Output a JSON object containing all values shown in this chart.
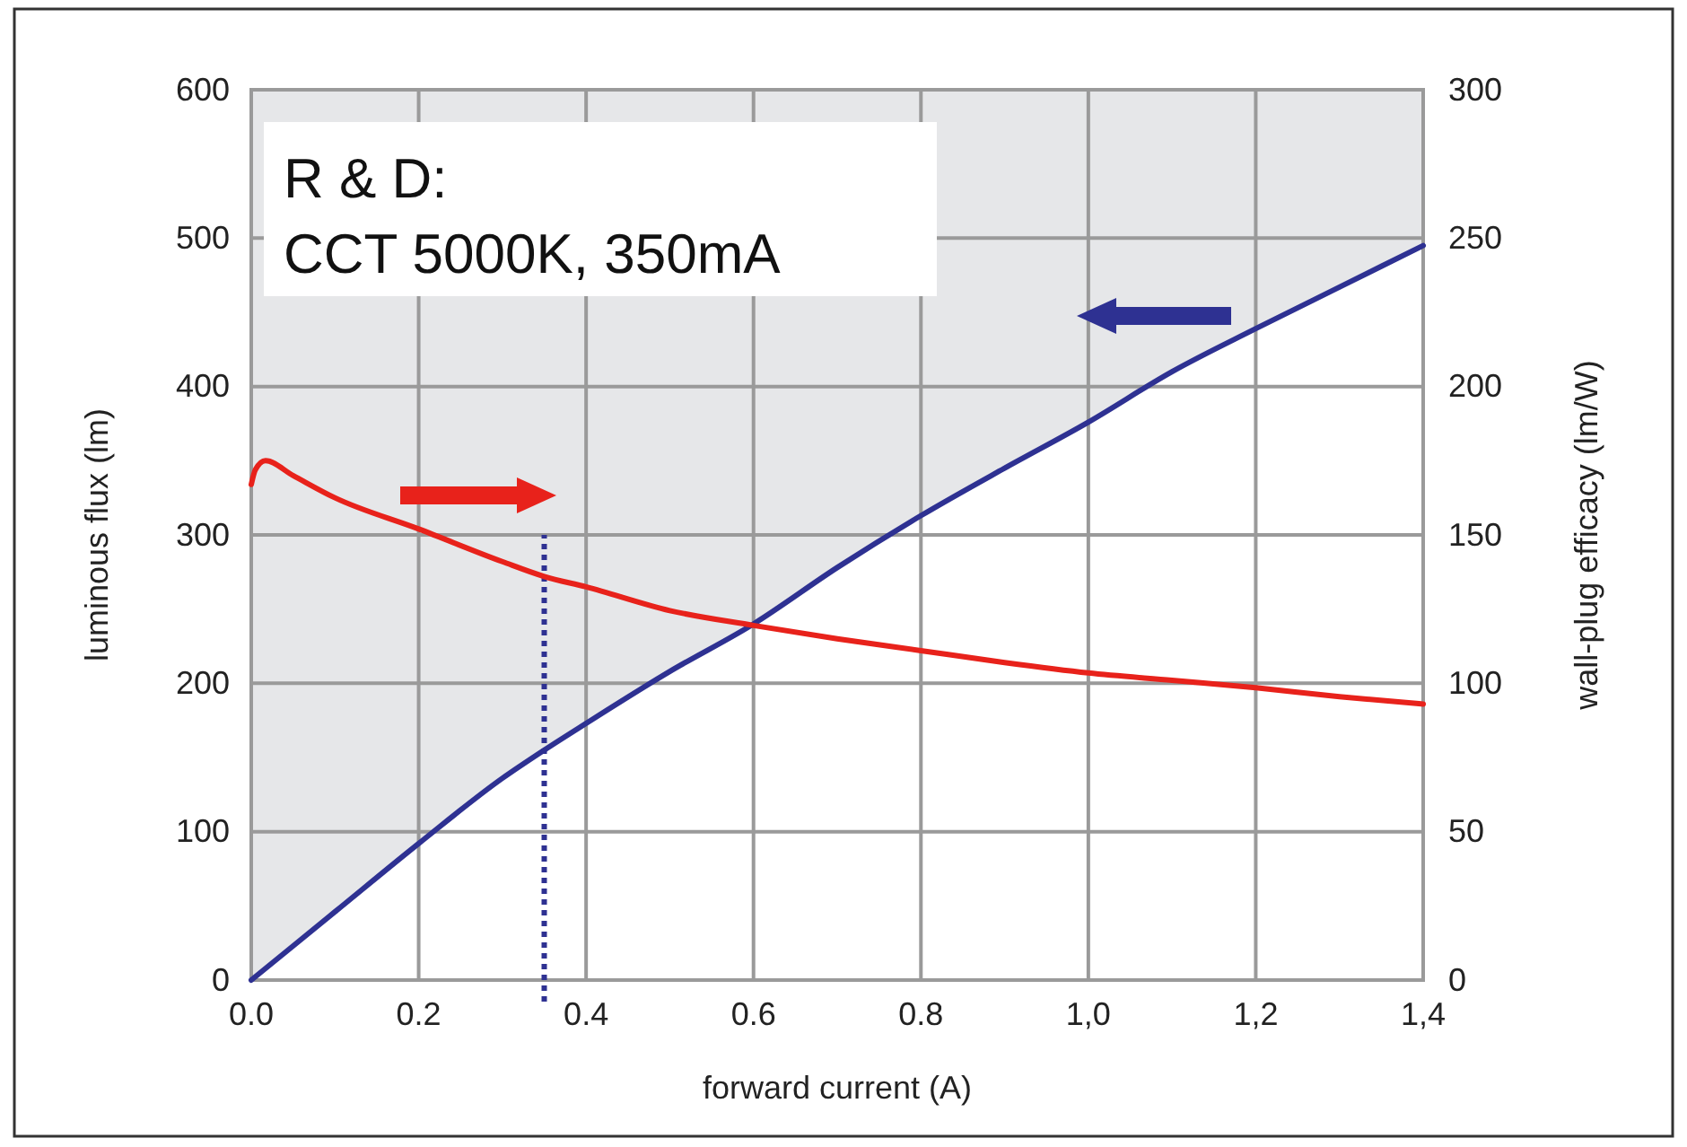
{
  "chart_data": {
    "type": "line",
    "xlabel": "forward current (A)",
    "ylabel": "luminous flux (lm)",
    "y2label": "wall-plug efficacy (lm/W)",
    "annotations": [
      "R & D:",
      "CCT 5000K, 350mA"
    ],
    "xlim": [
      0,
      1.4
    ],
    "xticks": [
      {
        "value": 0,
        "label": "0.0"
      },
      {
        "value": 0.2,
        "label": "0.2"
      },
      {
        "value": 0.4,
        "label": "0.4"
      },
      {
        "value": 0.6,
        "label": "0.6"
      },
      {
        "value": 0.8,
        "label": "0.8"
      },
      {
        "value": 1.0,
        "label": "1,0"
      },
      {
        "value": 1.2,
        "label": "1,2"
      },
      {
        "value": 1.4,
        "label": "1,4"
      }
    ],
    "ylim": [
      0,
      600
    ],
    "yticks": [
      0,
      100,
      200,
      300,
      400,
      500,
      600
    ],
    "y2lim": [
      0,
      300
    ],
    "y2ticks": [
      0,
      50,
      100,
      150,
      200,
      250,
      300
    ],
    "grid": true,
    "line_style": "solid",
    "ref_lines": [
      {
        "axis": "x",
        "value": 0.35,
        "color": "#2e3192",
        "line_style": "dotted"
      }
    ],
    "series": [
      {
        "color": "#2e3192",
        "x": [
          0,
          0.1,
          0.2,
          0.3,
          0.35,
          0.4,
          0.5,
          0.6,
          0.7,
          0.8,
          0.9,
          1.0,
          1.1,
          1.2,
          1.3,
          1.4
        ],
        "values": [
          0,
          46,
          92,
          136,
          155,
          173,
          208,
          240,
          278,
          313,
          345,
          376,
          410,
          439,
          467,
          495
        ],
        "lower": [
          0,
          46,
          92,
          136,
          155,
          173,
          208,
          240,
          278,
          313,
          345,
          376,
          410,
          439,
          467,
          495
        ],
        "upper": [
          600,
          600,
          600,
          600,
          600,
          600,
          600,
          600,
          600,
          600,
          600,
          600,
          600,
          600,
          600,
          600
        ]
      },
      {
        "color": "#e8221b",
        "axis": "y2",
        "x": [
          0,
          0.005,
          0.017,
          0.05,
          0.1,
          0.2,
          0.3,
          0.35,
          0.4,
          0.5,
          0.6,
          0.7,
          0.8,
          0.9,
          1.0,
          1.1,
          1.2,
          1.3,
          1.4
        ],
        "values": [
          167,
          172,
          175,
          170,
          162.5,
          152,
          141,
          136,
          132.5,
          124.5,
          119.5,
          115,
          111,
          107,
          103.5,
          101,
          98.5,
          95.5,
          93
        ]
      }
    ]
  }
}
